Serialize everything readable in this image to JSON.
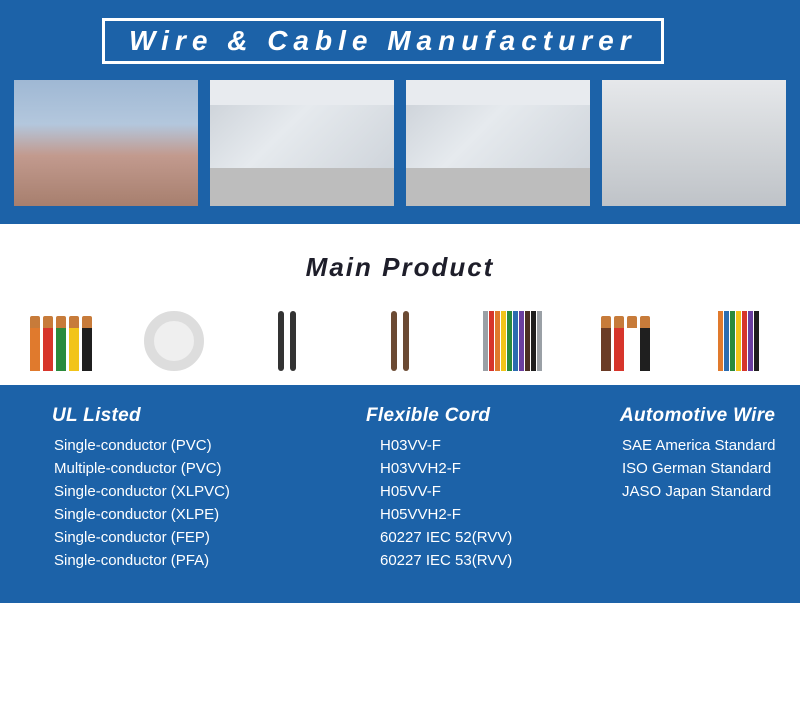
{
  "banner": {
    "title": "Wire & Cable Manufacturer",
    "bg_color": "#1c62a8",
    "border_color": "#ffffff",
    "title_color": "#ffffff"
  },
  "main_product": {
    "heading": "Main Product"
  },
  "product_wire_colors": {
    "tile1": [
      "#e07a2d",
      "#d7352b",
      "#2a8a3c",
      "#f2c419",
      "#1f1f1f"
    ],
    "tile5": [
      "#9aa0a6",
      "#d7352b",
      "#e07a2d",
      "#f2c419",
      "#2a8a3c",
      "#2b6cb0",
      "#6b3fa0",
      "#4a2f22",
      "#1f1f1f",
      "#9aa0a6"
    ],
    "tile6": [
      "#6b3b25",
      "#d7352b",
      "#ffffff",
      "#1f1f1f"
    ],
    "tile7": [
      "#e07a2d",
      "#2b6cb0",
      "#2a8a3c",
      "#f2c419",
      "#d7352b",
      "#6b3fa0",
      "#1f1f1f"
    ]
  },
  "categories": {
    "ul": {
      "heading": "UL Listed",
      "items": [
        "Single-conductor (PVC)",
        "Multiple-conductor (PVC)",
        "Single-conductor (XLPVC)",
        "Single-conductor (XLPE)",
        "Single-conductor (FEP)",
        "Single-conductor (PFA)"
      ]
    },
    "flex": {
      "heading": "Flexible Cord",
      "items": [
        "H03VV-F",
        "H03VVH2-F",
        "H05VV-F",
        "H05VVH2-F",
        "60227 IEC 52(RVV)",
        "60227 IEC 53(RVV)"
      ]
    },
    "auto": {
      "heading": "Automotive Wire",
      "items": [
        "SAE America Standard",
        "ISO German Standard",
        "JASO Japan Standard"
      ]
    }
  }
}
